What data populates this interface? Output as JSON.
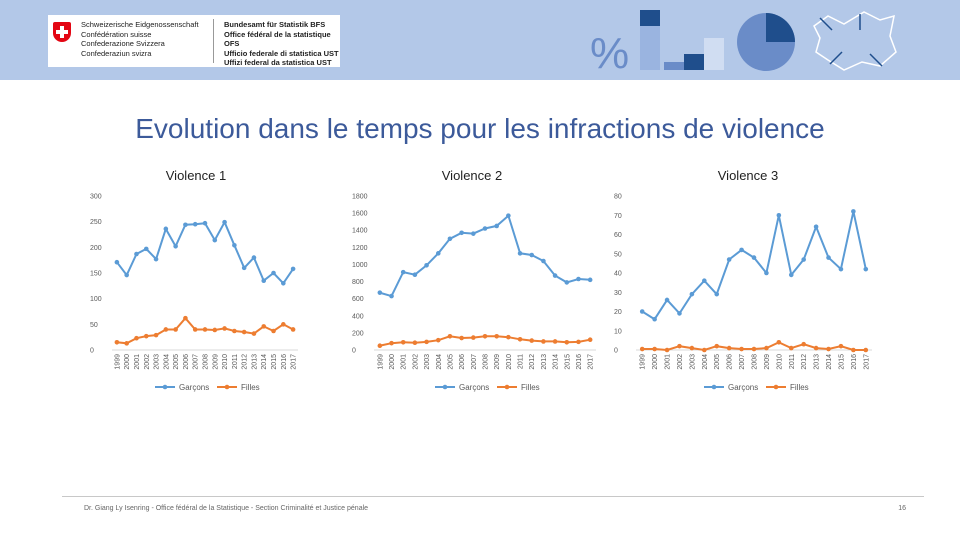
{
  "header": {
    "country_names": [
      "Schweizerische Eidgenossenschaft",
      "Confédération suisse",
      "Confederazione Svizzera",
      "Confederaziun svizra"
    ],
    "office_names": [
      "Bundesamt für Statistik BFS",
      "Office fédéral de la statistique OFS",
      "Ufficio federale di statistica UST",
      "Uffizi federal da statistica UST"
    ],
    "percent_symbol": "%"
  },
  "slide": {
    "title": "Evolution dans le temps pour les infractions de violence",
    "footer": "Dr. Giang Ly Isenring - Office fédéral de la Statistique - Section Criminalité et Justice pénale",
    "page_number": "16"
  },
  "colors": {
    "garcons": "#5b9bd5",
    "filles": "#ed7d31",
    "title": "#3c5a9a",
    "banner": "#b3c8e8"
  },
  "chart_data": [
    {
      "type": "line",
      "title": "Violence 1",
      "categories": [
        "1999",
        "2000",
        "2001",
        "2002",
        "2003",
        "2004",
        "2005",
        "2006",
        "2007",
        "2008",
        "2009",
        "2010",
        "2011",
        "2012",
        "2013",
        "2014",
        "2015",
        "2016",
        "2017"
      ],
      "series": [
        {
          "name": "Garçons",
          "values": [
            171,
            146,
            187,
            197,
            177,
            236,
            202,
            244,
            245,
            247,
            214,
            249,
            204,
            160,
            180,
            135,
            150,
            130,
            158
          ]
        },
        {
          "name": "Filles",
          "values": [
            15,
            13,
            23,
            27,
            29,
            40,
            40,
            62,
            40,
            40,
            39,
            42,
            37,
            35,
            32,
            46,
            37,
            50,
            40
          ]
        }
      ],
      "ylim": [
        0,
        300
      ],
      "yticks": [
        "300",
        "250",
        "200",
        "150",
        "100",
        "50",
        "0"
      ],
      "ytick_values": [
        300,
        250,
        200,
        150,
        100,
        50,
        0
      ]
    },
    {
      "type": "line",
      "title": "Violence 2",
      "categories": [
        "1999",
        "2000",
        "2001",
        "2002",
        "2003",
        "2004",
        "2005",
        "2006",
        "2007",
        "2008",
        "2009",
        "2010",
        "2011",
        "2012",
        "2013",
        "2014",
        "2015",
        "2016",
        "2017"
      ],
      "series": [
        {
          "name": "Garçons",
          "values": [
            670,
            630,
            910,
            880,
            990,
            1130,
            1300,
            1370,
            1360,
            1420,
            1450,
            1570,
            1130,
            1110,
            1040,
            870,
            790,
            830,
            820
          ]
        },
        {
          "name": "Filles",
          "values": [
            50,
            80,
            90,
            85,
            95,
            115,
            160,
            140,
            145,
            160,
            160,
            150,
            125,
            110,
            100,
            100,
            90,
            95,
            120
          ]
        }
      ],
      "ylim": [
        0,
        1800
      ],
      "yticks": [
        "1800",
        "1600",
        "1400",
        "1200",
        "1000",
        "800",
        "600",
        "400",
        "200",
        "0"
      ],
      "ytick_values": [
        1800,
        1600,
        1400,
        1200,
        1000,
        800,
        600,
        400,
        200,
        0
      ]
    },
    {
      "type": "line",
      "title": "Violence 3",
      "categories": [
        "1999",
        "2000",
        "2001",
        "2002",
        "2003",
        "2004",
        "2005",
        "2006",
        "2007",
        "2008",
        "2009",
        "2010",
        "2011",
        "2012",
        "2013",
        "2014",
        "2015",
        "2016",
        "2017"
      ],
      "series": [
        {
          "name": "Garçons",
          "values": [
            20,
            16,
            26,
            19,
            29,
            36,
            29,
            47,
            52,
            48,
            40,
            70,
            39,
            47,
            64,
            48,
            42,
            72,
            42
          ]
        },
        {
          "name": "Filles",
          "values": [
            0.5,
            0.5,
            0,
            2,
            1,
            0,
            2,
            1,
            0.5,
            0.5,
            1,
            4,
            1,
            3,
            1,
            0.5,
            2,
            0,
            0
          ]
        }
      ],
      "ylim": [
        0,
        80
      ],
      "yticks": [
        "80",
        "70",
        "60",
        "50",
        "40",
        "30",
        "20",
        "10",
        "0"
      ],
      "ytick_values": [
        80,
        70,
        60,
        50,
        40,
        30,
        20,
        10,
        0
      ]
    }
  ]
}
